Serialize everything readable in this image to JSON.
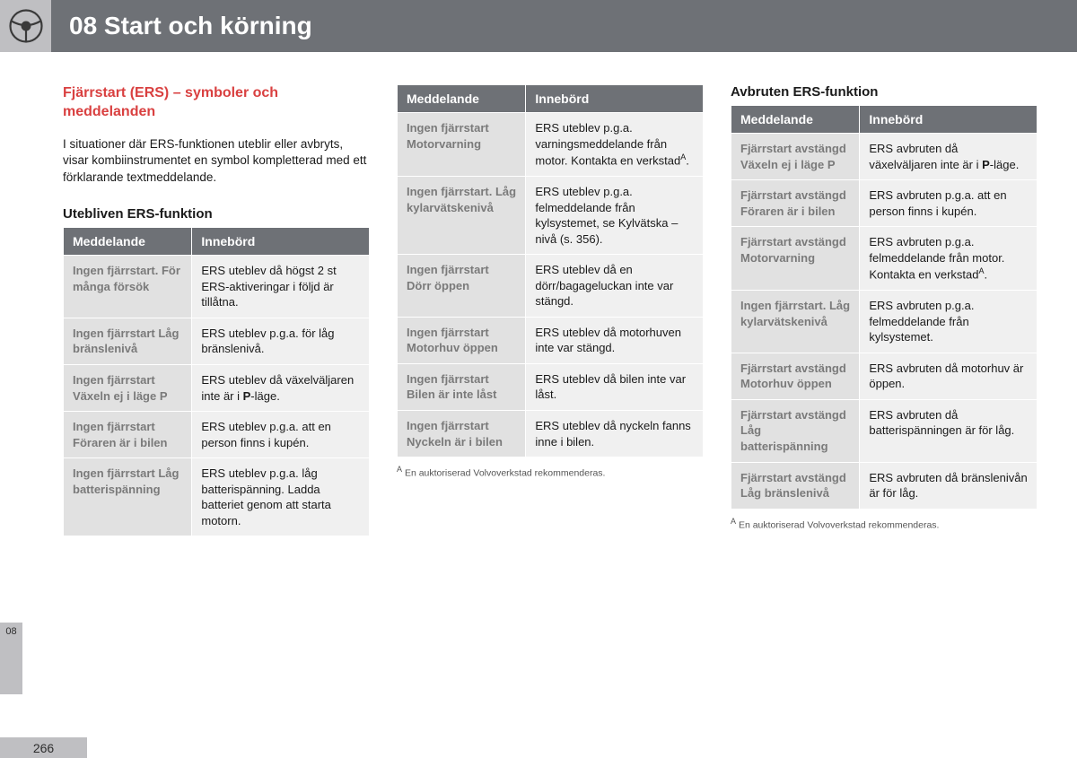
{
  "header": {
    "title": "08 Start och körning"
  },
  "sideTab": "08",
  "pageNumber": "266",
  "col1": {
    "title": "Fjärrstart (ERS) – symboler och meddelanden",
    "body": "I situationer där ERS-funktionen uteblir eller avbryts, visar kombiinstrumentet en symbol kompletterad med ett förklarande textmeddelande.",
    "subheading": "Utebliven ERS-funktion",
    "th1": "Meddelande",
    "th2": "Innebörd",
    "rows": [
      {
        "m": "Ingen fjärrstart. För många försök",
        "d": "ERS uteblev då högst 2 st ERS-aktiveringar i följd är tillåtna."
      },
      {
        "m": "Ingen fjärrstart Låg bränslenivå",
        "d": "ERS uteblev p.g.a. för låg bränslenivå."
      },
      {
        "m": "Ingen fjärrstart Växeln ej i läge P",
        "d": "ERS uteblev då växelväljaren inte är i P-läge.",
        "bold": "P"
      },
      {
        "m": "Ingen fjärrstart Föraren är i bilen",
        "d": "ERS uteblev p.g.a. att en person finns i kupén."
      },
      {
        "m": "Ingen fjärrstart Låg batterispänning",
        "d": "ERS uteblev p.g.a. låg batterispänning. Ladda batteriet genom att starta motorn."
      }
    ]
  },
  "col2": {
    "th1": "Meddelande",
    "th2": "Innebörd",
    "rows": [
      {
        "m": "Ingen fjärrstart Motorvarning",
        "d": "ERS uteblev p.g.a. varningsmeddelande från motor. Kontakta en verkstad",
        "sup": "A",
        "after": "."
      },
      {
        "m": "Ingen fjärrstart. Låg kylarvätskenivå",
        "d": "ERS uteblev p.g.a. felmeddelande från kylsystemet, se Kylvätska – nivå (s. 356)."
      },
      {
        "m": "Ingen fjärrstart Dörr öppen",
        "d": "ERS uteblev då en dörr/bagageluckan inte var stängd."
      },
      {
        "m": "Ingen fjärrstart Motorhuv öppen",
        "d": "ERS uteblev då motorhuven inte var stängd."
      },
      {
        "m": "Ingen fjärrstart Bilen är inte låst",
        "d": "ERS uteblev då bilen inte var låst."
      },
      {
        "m": "Ingen fjärrstart Nyckeln är i bilen",
        "d": "ERS uteblev då nyckeln fanns inne i bilen."
      }
    ],
    "footnote": "En auktoriserad Volvoverkstad rekommenderas.",
    "footMark": "A"
  },
  "col3": {
    "subheading": "Avbruten ERS-funktion",
    "th1": "Meddelande",
    "th2": "Innebörd",
    "rows": [
      {
        "m": "Fjärrstart avstängd Växeln ej i läge P",
        "d": "ERS avbruten då växelväljaren inte är i P-läge.",
        "bold": "P"
      },
      {
        "m": "Fjärrstart avstängd Föraren är i bilen",
        "d": "ERS avbruten p.g.a. att en person finns i kupén."
      },
      {
        "m": "Fjärrstart avstängd Motorvarning",
        "d": "ERS avbruten p.g.a. felmeddelande från motor. Kontakta en verkstad",
        "sup": "A",
        "after": "."
      },
      {
        "m": "Ingen fjärrstart. Låg kylarvätskenivå",
        "d": "ERS avbruten p.g.a. felmeddelande från kylsystemet."
      },
      {
        "m": "Fjärrstart avstängd Motorhuv öppen",
        "d": "ERS avbruten då motorhuv är öppen."
      },
      {
        "m": "Fjärrstart avstängd Låg batterispänning",
        "d": "ERS avbruten då batterispänningen är för låg."
      },
      {
        "m": "Fjärrstart avstängd Låg bränslenivå",
        "d": "ERS avbruten då bränslenivån är för låg."
      }
    ],
    "footnote": "En auktoriserad Volvoverkstad rekommenderas.",
    "footMark": "A"
  }
}
